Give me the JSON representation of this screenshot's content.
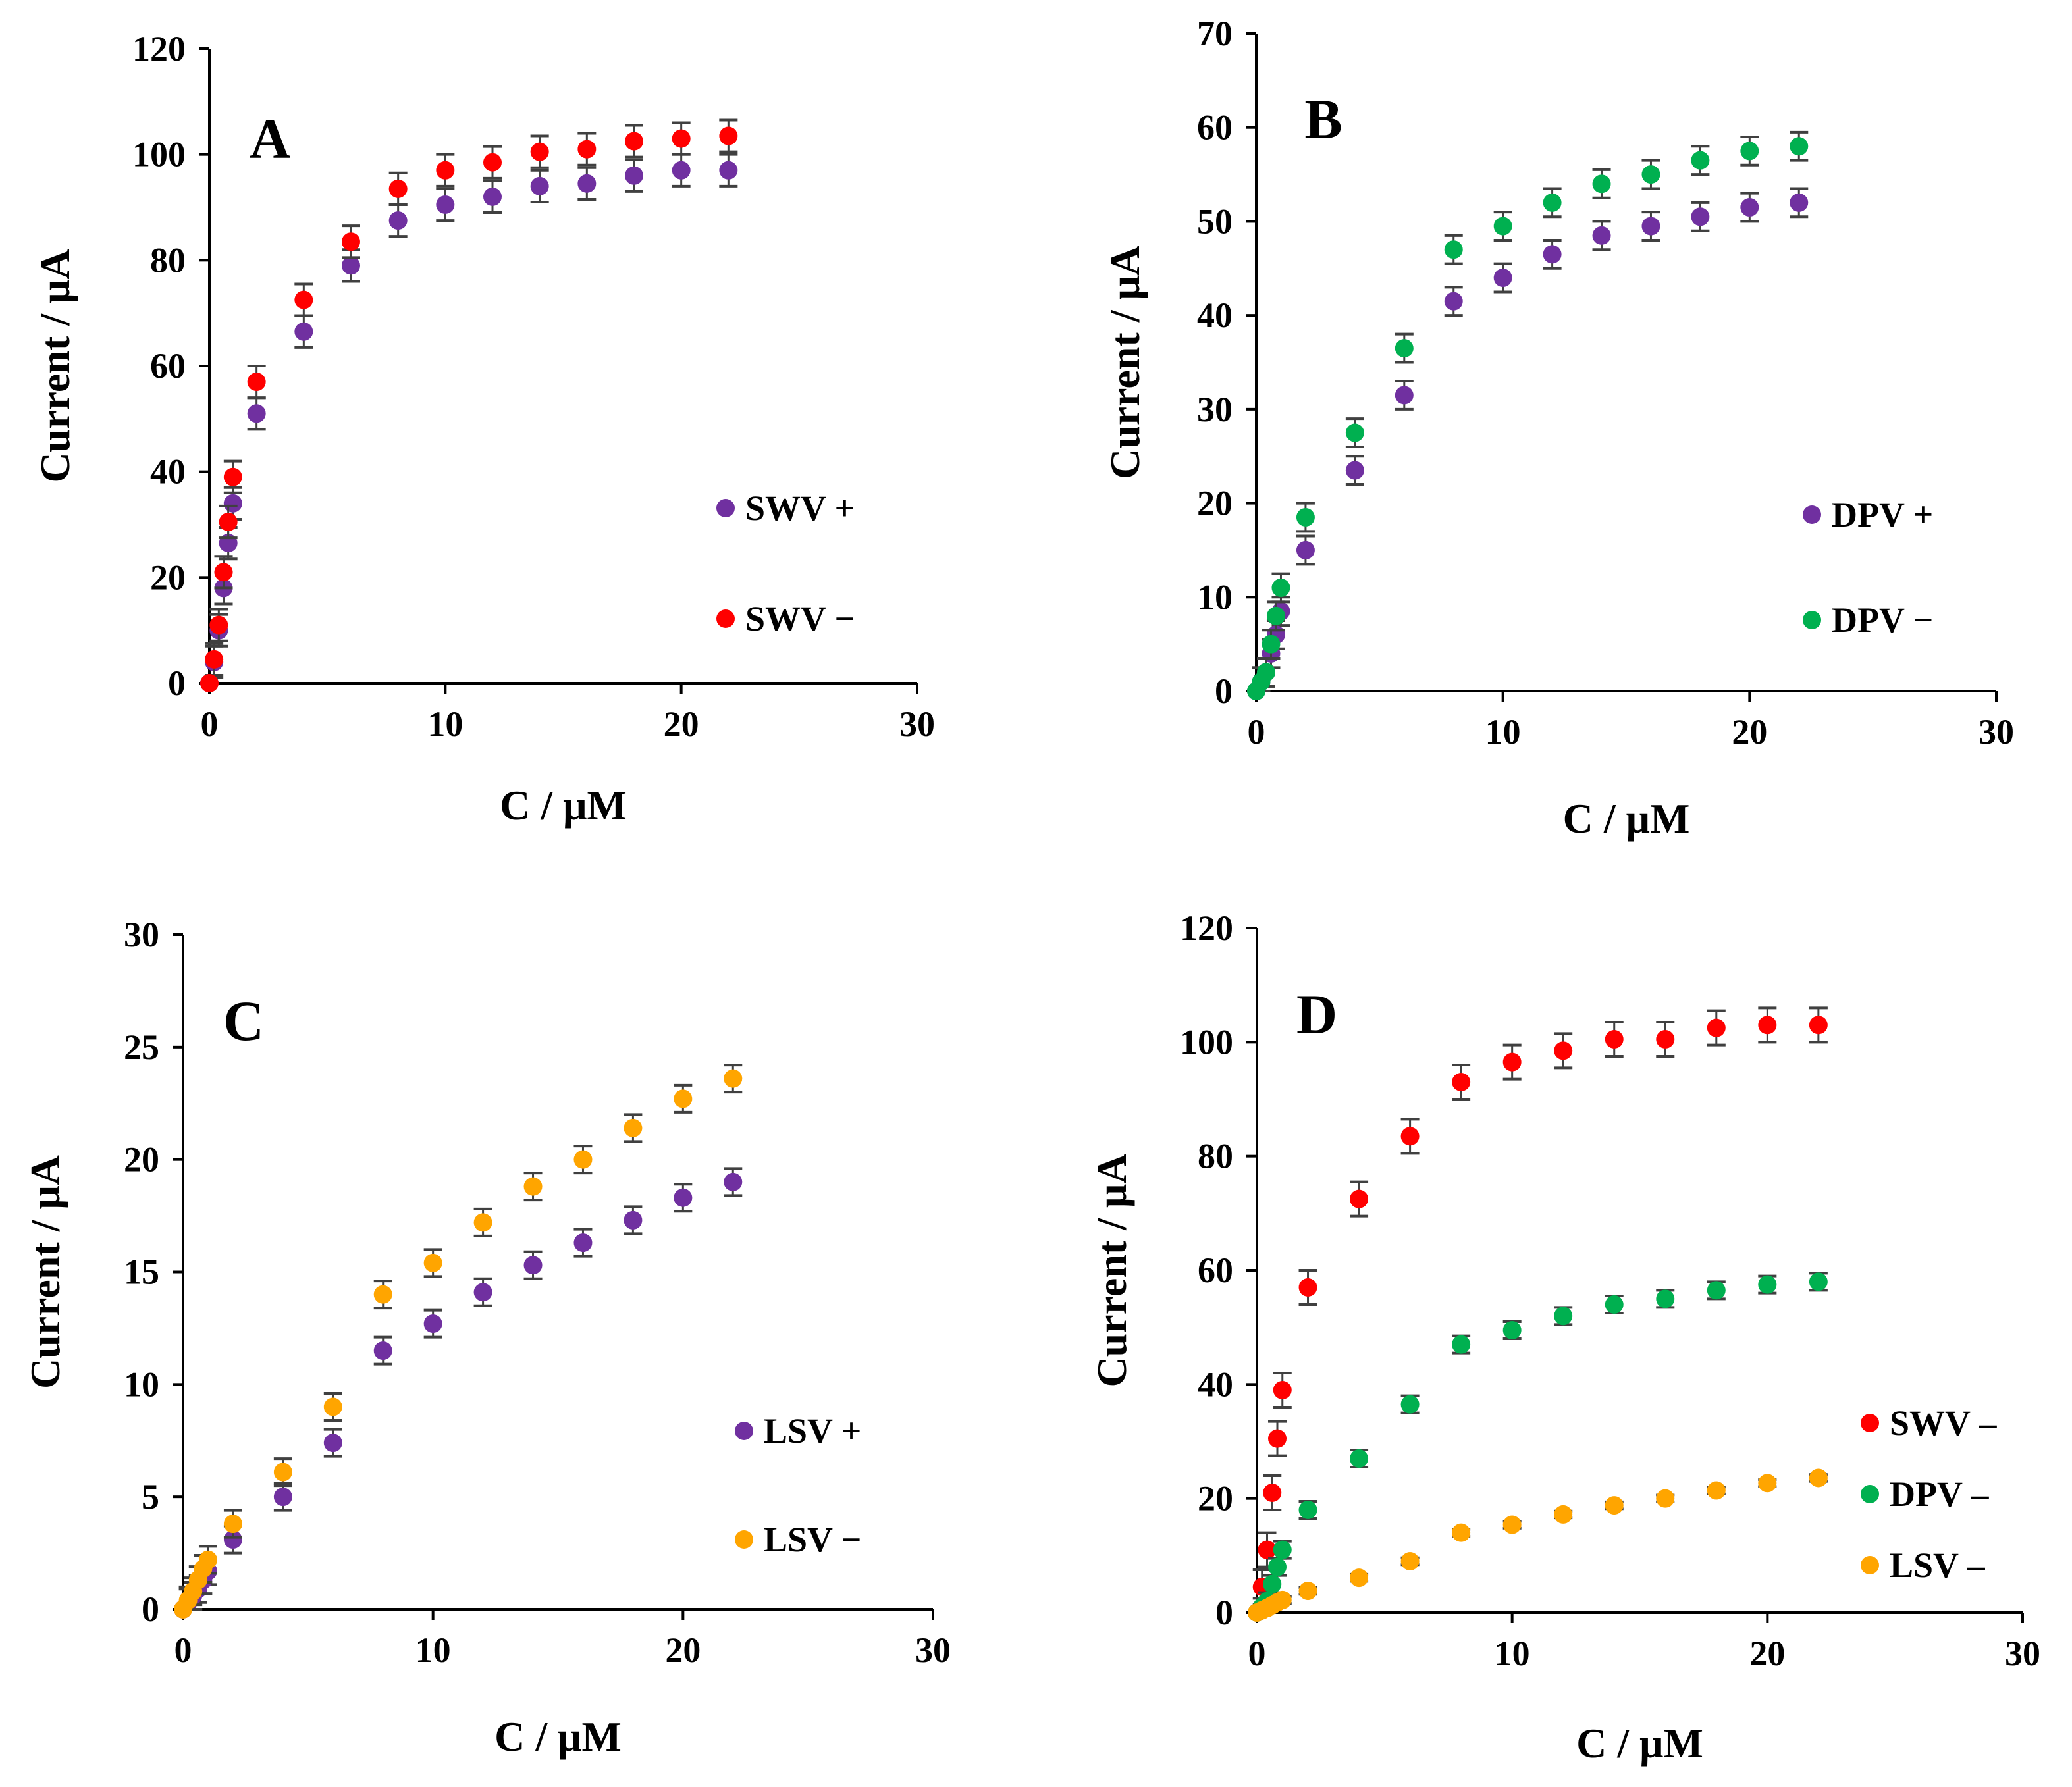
{
  "colors": {
    "purple": "#7030A0",
    "red": "#FF0000",
    "green": "#00B050",
    "orange": "#FFA500",
    "errorbar": "#404040"
  },
  "chart_data": [
    {
      "panel": "A",
      "type": "scatter",
      "xlabel": "C / μM",
      "ylabel": "Current / μA",
      "xlim": [
        0,
        30
      ],
      "ylim": [
        0,
        120
      ],
      "xticks": [
        0,
        10,
        20,
        30
      ],
      "yticks": [
        0,
        20,
        40,
        60,
        80,
        100,
        120
      ],
      "legend_position": "bottom-right",
      "series": [
        {
          "name": "SWV +",
          "color": "#7030A0",
          "x": [
            0,
            0.2,
            0.4,
            0.6,
            0.8,
            1,
            2,
            4,
            6,
            8,
            10,
            12,
            14,
            16,
            18,
            20,
            22
          ],
          "y": [
            0,
            4,
            10,
            18,
            26.5,
            34,
            51,
            66.5,
            79,
            87.5,
            90.5,
            92,
            94,
            94.5,
            96,
            97,
            97
          ],
          "err": 3
        },
        {
          "name": "SWV −",
          "color": "#FF0000",
          "x": [
            0,
            0.2,
            0.4,
            0.6,
            0.8,
            1,
            2,
            4,
            6,
            8,
            10,
            12,
            14,
            16,
            18,
            20,
            22
          ],
          "y": [
            0,
            4.5,
            11,
            21,
            30.5,
            39,
            57,
            72.5,
            83.5,
            93.5,
            97,
            98.5,
            100.5,
            101,
            102.5,
            103,
            103.5
          ],
          "err": 3
        }
      ]
    },
    {
      "panel": "B",
      "type": "scatter",
      "xlabel": "C / μM",
      "ylabel": "Current / μA",
      "xlim": [
        0,
        30
      ],
      "ylim": [
        0,
        70
      ],
      "xticks": [
        0,
        10,
        20,
        30
      ],
      "yticks": [
        0,
        10,
        20,
        30,
        40,
        50,
        60,
        70
      ],
      "legend_position": "bottom-right",
      "series": [
        {
          "name": "DPV +",
          "color": "#7030A0",
          "x": [
            0,
            0.2,
            0.4,
            0.6,
            0.8,
            1,
            2,
            4,
            6,
            8,
            10,
            12,
            14,
            16,
            18,
            20,
            22
          ],
          "y": [
            0,
            1,
            2,
            4,
            6,
            8.5,
            15,
            23.5,
            31.5,
            41.5,
            44,
            46.5,
            48.5,
            49.5,
            50.5,
            51.5,
            52
          ],
          "err": 1.5
        },
        {
          "name": "DPV −",
          "color": "#00B050",
          "x": [
            0,
            0.2,
            0.4,
            0.6,
            0.8,
            1,
            2,
            4,
            6,
            8,
            10,
            12,
            14,
            16,
            18,
            20,
            22
          ],
          "y": [
            0,
            1,
            2,
            5,
            8,
            11,
            18.5,
            27.5,
            36.5,
            47,
            49.5,
            52,
            54,
            55,
            56.5,
            57.5,
            58
          ],
          "err": 1.5
        }
      ]
    },
    {
      "panel": "C",
      "type": "scatter",
      "xlabel": "C / μM",
      "ylabel": "Current / μA",
      "xlim": [
        0,
        30
      ],
      "ylim": [
        0,
        30
      ],
      "xticks": [
        0,
        10,
        20,
        30
      ],
      "yticks": [
        0,
        5,
        10,
        15,
        20,
        25,
        30
      ],
      "legend_position": "bottom-right",
      "series": [
        {
          "name": "LSV +",
          "color": "#7030A0",
          "x": [
            0,
            0.2,
            0.4,
            0.6,
            0.8,
            1,
            2,
            4,
            6,
            8,
            10,
            12,
            14,
            16,
            18,
            20,
            22
          ],
          "y": [
            0,
            0.3,
            0.6,
            0.9,
            1.3,
            1.7,
            3.1,
            5,
            7.4,
            11.5,
            12.7,
            14.1,
            15.3,
            16.3,
            17.3,
            18.3,
            19
          ],
          "err": 0.6
        },
        {
          "name": "LSV −",
          "color": "#FFA500",
          "x": [
            0,
            0.2,
            0.4,
            0.6,
            0.8,
            1,
            2,
            4,
            6,
            8,
            10,
            12,
            14,
            16,
            18,
            20,
            22
          ],
          "y": [
            0,
            0.4,
            0.8,
            1.3,
            1.8,
            2.2,
            3.8,
            6.1,
            9,
            14,
            15.4,
            17.2,
            18.8,
            20,
            21.4,
            22.7,
            23.6
          ],
          "err": 0.6
        }
      ]
    },
    {
      "panel": "D",
      "type": "scatter",
      "xlabel": "C / μM",
      "ylabel": "Current / μA",
      "xlim": [
        0,
        30
      ],
      "ylim": [
        0,
        120
      ],
      "xticks": [
        0,
        10,
        20,
        30
      ],
      "yticks": [
        0,
        20,
        40,
        60,
        80,
        100,
        120
      ],
      "legend_position": "bottom-right",
      "series": [
        {
          "name": "SWV –",
          "color": "#FF0000",
          "x": [
            0,
            0.2,
            0.4,
            0.6,
            0.8,
            1,
            2,
            4,
            6,
            8,
            10,
            12,
            14,
            16,
            18,
            20,
            22
          ],
          "y": [
            0,
            4.5,
            11,
            21,
            30.5,
            39,
            57,
            72.5,
            83.5,
            93,
            96.5,
            98.5,
            100.5,
            100.5,
            102.5,
            103,
            103
          ],
          "err": 3
        },
        {
          "name": "DPV  –",
          "color": "#00B050",
          "x": [
            0,
            0.2,
            0.4,
            0.6,
            0.8,
            1,
            2,
            4,
            6,
            8,
            10,
            12,
            14,
            16,
            18,
            20,
            22
          ],
          "y": [
            0,
            1,
            2,
            5,
            8,
            11,
            18,
            27,
            36.5,
            47,
            49.5,
            52,
            54,
            55,
            56.5,
            57.5,
            58
          ],
          "err": 1.5
        },
        {
          "name": "LSV  –",
          "color": "#FFA500",
          "x": [
            0,
            0.2,
            0.4,
            0.6,
            0.8,
            1,
            2,
            4,
            6,
            8,
            10,
            12,
            14,
            16,
            18,
            20,
            22
          ],
          "y": [
            0,
            0.4,
            0.8,
            1.3,
            1.8,
            2.2,
            3.8,
            6.1,
            9,
            14,
            15.4,
            17.2,
            18.8,
            20,
            21.4,
            22.7,
            23.6
          ],
          "err": 0.6
        }
      ]
    }
  ]
}
